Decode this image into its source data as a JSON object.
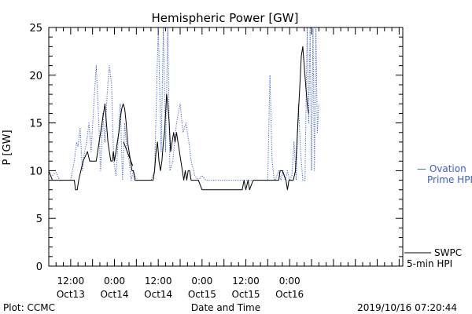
{
  "chart_data": {
    "type": "line",
    "title": "Hemispheric Power [GW]",
    "ylabel": "P [GW]",
    "xlabel": "Date and Time",
    "ylim": [
      0,
      25
    ],
    "yticks": [
      0,
      5,
      10,
      15,
      20,
      25
    ],
    "x_unit": "hours since 2019-10-12 06:00 UT",
    "xlim": [
      0,
      97
    ],
    "xticks": [
      {
        "x": 6,
        "time": "12:00",
        "date": "Oct13"
      },
      {
        "x": 18,
        "time": "0:00",
        "date": "Oct14"
      },
      {
        "x": 30,
        "time": "12:00",
        "date": "Oct14"
      },
      {
        "x": 42,
        "time": "0:00",
        "date": "Oct15"
      },
      {
        "x": 54,
        "time": "12:00",
        "date": "Oct15"
      },
      {
        "x": 66,
        "time": "0:00",
        "date": "Oct16"
      }
    ],
    "series": [
      {
        "name": "Ovation Prime HPI",
        "legend_lines": [
          "— Ovation",
          "Prime HPI"
        ],
        "color": "#3a5fcd",
        "style": "dotted",
        "points": [
          [
            0,
            9.2
          ],
          [
            1,
            9.5
          ],
          [
            2,
            9.8
          ],
          [
            3,
            9
          ],
          [
            6,
            9
          ],
          [
            7,
            11
          ],
          [
            7.6,
            13
          ],
          [
            8,
            12.5
          ],
          [
            8.6,
            14.5
          ],
          [
            9.2,
            10
          ],
          [
            9.8,
            12
          ],
          [
            10.4,
            13
          ],
          [
            11,
            15
          ],
          [
            11.6,
            12
          ],
          [
            12.2,
            16
          ],
          [
            13,
            21
          ],
          [
            13.6,
            16
          ],
          [
            14.2,
            10
          ],
          [
            14.8,
            16
          ],
          [
            15.4,
            13
          ],
          [
            16,
            18
          ],
          [
            16.6,
            21
          ],
          [
            17.2,
            19
          ],
          [
            17.8,
            11
          ],
          [
            18.4,
            9.5
          ],
          [
            19,
            13
          ],
          [
            19.6,
            17
          ],
          [
            20.2,
            9
          ],
          [
            20.8,
            15
          ],
          [
            21.4,
            12
          ],
          [
            22,
            11
          ],
          [
            22.6,
            9
          ],
          [
            23.2,
            10
          ],
          [
            24,
            9
          ],
          [
            26,
            9
          ],
          [
            28,
            9
          ],
          [
            29,
            10
          ],
          [
            30,
            25
          ],
          [
            30.8,
            12
          ],
          [
            31.4,
            25
          ],
          [
            32,
            12
          ],
          [
            32.6,
            25
          ],
          [
            33.2,
            10
          ],
          [
            34,
            11
          ],
          [
            35,
            15
          ],
          [
            36,
            17
          ],
          [
            36.8,
            14
          ],
          [
            37.6,
            15
          ],
          [
            38.4,
            13
          ],
          [
            39,
            11
          ],
          [
            40,
            9.5
          ],
          [
            41,
            9
          ],
          [
            42,
            9.5
          ],
          [
            43,
            9
          ],
          [
            46,
            9
          ],
          [
            50,
            9
          ],
          [
            54,
            9
          ],
          [
            58,
            9
          ],
          [
            60,
            9
          ],
          [
            60.6,
            20
          ],
          [
            61.2,
            11
          ],
          [
            61.8,
            9
          ],
          [
            62,
            9
          ],
          [
            63,
            10
          ],
          [
            63.6,
            9
          ],
          [
            64.2,
            10
          ],
          [
            64.8,
            9
          ],
          [
            65.4,
            10
          ],
          [
            66,
            9
          ],
          [
            66.6,
            9.5
          ],
          [
            67.2,
            13
          ],
          [
            67.8,
            9
          ],
          [
            68.4,
            17
          ],
          [
            69,
            12
          ],
          [
            69.6,
            9
          ],
          [
            70.2,
            9
          ],
          [
            70.8,
            25
          ],
          [
            71.2,
            15
          ],
          [
            71.6,
            25
          ],
          [
            72,
            10
          ],
          [
            72.4,
            25
          ],
          [
            72.8,
            10
          ],
          [
            73.2,
            25
          ],
          [
            73.6,
            14
          ],
          [
            74,
            17
          ]
        ]
      },
      {
        "name": "SWPC 5-min HPI",
        "legend_lines": [
          "SWPC",
          "5-min HPI"
        ],
        "color": "#000000",
        "style": "solid",
        "points": [
          [
            0,
            10
          ],
          [
            0.5,
            9.5
          ],
          [
            1,
            9
          ],
          [
            2,
            9
          ],
          [
            3,
            9
          ],
          [
            6,
            9
          ],
          [
            7,
            9
          ],
          [
            7.3,
            8
          ],
          [
            7.8,
            8
          ],
          [
            8.2,
            9
          ],
          [
            8.8,
            10
          ],
          [
            9.4,
            11
          ],
          [
            10,
            11.5
          ],
          [
            10.6,
            12
          ],
          [
            11.2,
            11
          ],
          [
            12,
            11
          ],
          [
            13,
            11
          ],
          [
            13.4,
            12
          ],
          [
            13.8,
            13
          ],
          [
            14.2,
            14
          ],
          [
            14.6,
            15
          ],
          [
            15,
            16
          ],
          [
            15.4,
            17
          ],
          [
            15.8,
            15
          ],
          [
            16.2,
            13
          ],
          [
            16.6,
            12
          ],
          [
            17,
            11
          ],
          [
            17.4,
            11
          ],
          [
            17.7,
            12
          ],
          [
            18,
            11
          ],
          [
            18.4,
            12
          ],
          [
            18.8,
            13
          ],
          [
            19.2,
            14
          ],
          [
            19.6,
            15.5
          ],
          [
            20,
            16.5
          ],
          [
            20.4,
            17
          ],
          [
            20.8,
            16.5
          ],
          [
            21.2,
            15
          ],
          [
            21.6,
            13
          ],
          [
            22,
            12
          ],
          [
            22.4,
            11
          ],
          [
            22.8,
            10
          ],
          [
            23.2,
            10
          ],
          [
            23.6,
            9
          ],
          [
            26,
            9
          ],
          [
            28,
            9
          ],
          [
            28.6,
            9
          ],
          [
            29,
            10
          ],
          [
            29.4,
            12
          ],
          [
            29.8,
            13
          ],
          [
            30.2,
            11
          ],
          [
            30.6,
            10
          ],
          [
            31,
            11
          ],
          [
            31.4,
            13
          ],
          [
            31.7,
            14
          ],
          [
            32,
            16
          ],
          [
            32.3,
            18
          ],
          [
            32.6,
            17
          ],
          [
            33,
            15
          ],
          [
            33.4,
            12
          ],
          [
            33.8,
            13
          ],
          [
            34.2,
            14
          ],
          [
            34.6,
            13
          ],
          [
            35,
            14
          ],
          [
            35.4,
            13
          ],
          [
            35.8,
            12
          ],
          [
            36.2,
            11
          ],
          [
            36.6,
            10
          ],
          [
            37,
            9
          ],
          [
            37.4,
            10
          ],
          [
            37.8,
            9
          ],
          [
            38.2,
            10
          ],
          [
            38.6,
            10
          ],
          [
            39,
            9
          ],
          [
            40,
            9
          ],
          [
            41,
            9
          ],
          [
            42,
            8
          ],
          [
            44,
            8
          ],
          [
            46,
            8
          ],
          [
            48,
            8
          ],
          [
            50,
            8
          ],
          [
            52,
            8
          ],
          [
            53,
            8
          ],
          [
            53.5,
            9
          ],
          [
            54,
            8
          ],
          [
            54.6,
            9
          ],
          [
            55,
            8
          ],
          [
            56,
            9
          ],
          [
            57,
            9
          ],
          [
            58,
            9
          ],
          [
            60,
            9
          ],
          [
            62,
            9
          ],
          [
            63,
            9
          ],
          [
            63.4,
            10
          ],
          [
            64,
            10
          ],
          [
            65,
            9
          ],
          [
            65.4,
            8
          ],
          [
            65.8,
            9
          ],
          [
            66.4,
            9
          ],
          [
            67,
            9
          ],
          [
            67.6,
            10
          ],
          [
            68,
            13
          ],
          [
            68.4,
            16
          ],
          [
            68.8,
            19
          ],
          [
            69.2,
            22
          ],
          [
            69.6,
            23
          ],
          [
            70,
            21
          ],
          [
            70.4,
            19
          ],
          [
            70.8,
            17
          ],
          [
            71.2,
            16
          ]
        ]
      }
    ],
    "annotation_segment": {
      "x1": 20.5,
      "y1": 13,
      "x2": 23,
      "y2": 10.5
    },
    "footer": {
      "left": "Plot: CCMC",
      "right": "2019/10/16 07:20:44"
    }
  }
}
